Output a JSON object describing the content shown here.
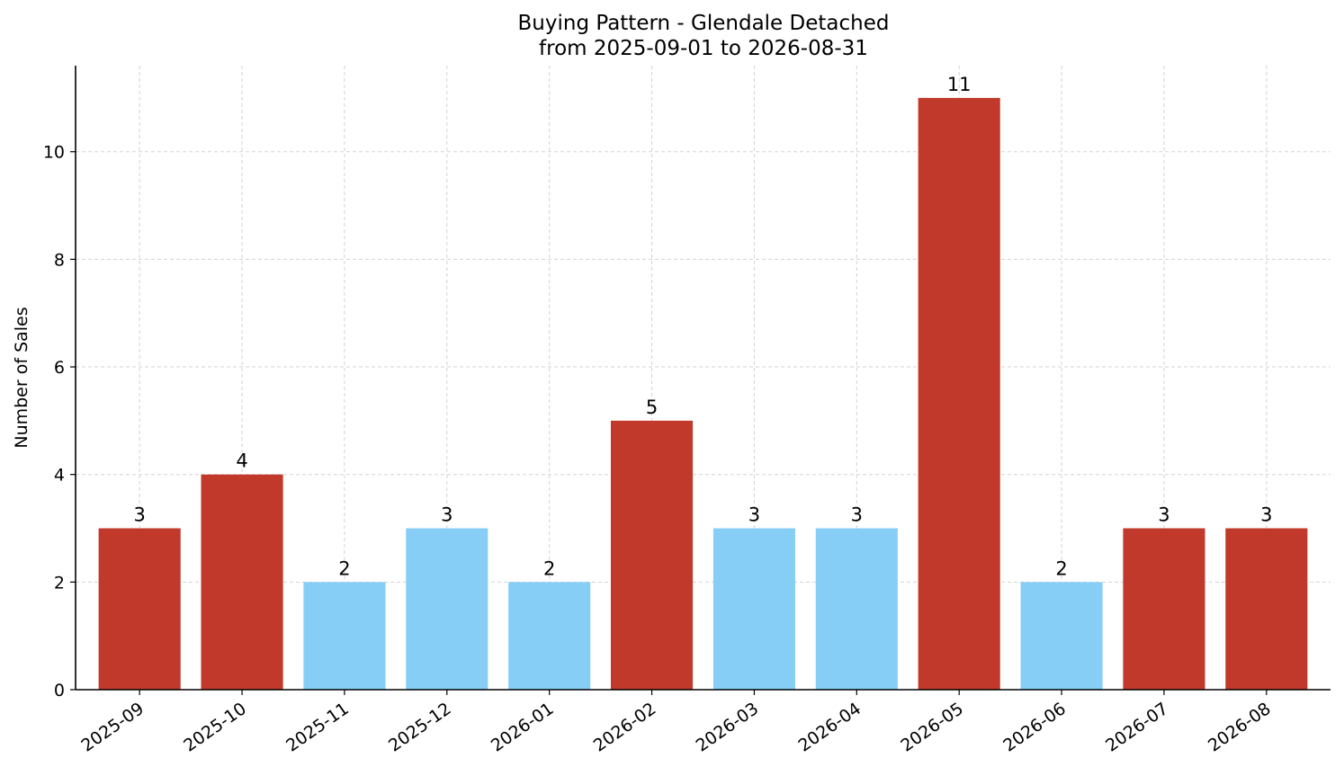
{
  "chart_data": {
    "type": "bar",
    "title": "Buying Pattern - Glendale Detached",
    "subtitle": "from 2025-09-01 to 2026-08-31",
    "xlabel": "",
    "ylabel": "Number of Sales",
    "categories": [
      "2025-09",
      "2025-10",
      "2025-11",
      "2025-12",
      "2026-01",
      "2026-02",
      "2026-03",
      "2026-04",
      "2026-05",
      "2026-06",
      "2026-07",
      "2026-08"
    ],
    "values": [
      3,
      4,
      2,
      3,
      2,
      5,
      3,
      3,
      11,
      2,
      3,
      3
    ],
    "ylim": [
      0,
      11.6
    ],
    "yticks": [
      0,
      2,
      4,
      6,
      8,
      10
    ],
    "grid": true,
    "colors": {
      "high": "#c0392b",
      "low": "#87cef7"
    },
    "bar_colors": [
      "#c0392b",
      "#c0392b",
      "#87cef7",
      "#87cef7",
      "#87cef7",
      "#c0392b",
      "#87cef7",
      "#87cef7",
      "#c0392b",
      "#87cef7",
      "#c0392b",
      "#c0392b"
    ]
  }
}
